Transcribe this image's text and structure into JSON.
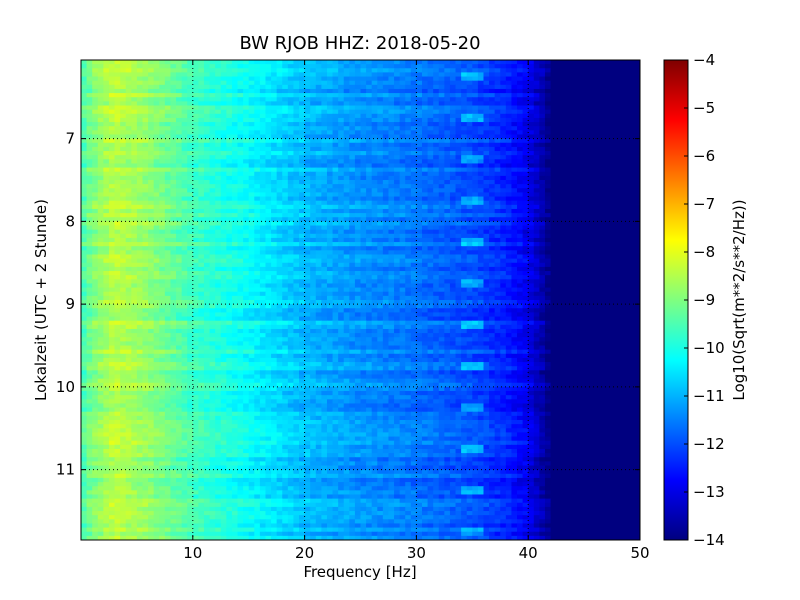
{
  "chart_data": {
    "type": "heatmap",
    "title": "BW RJOB HHZ: 2018-05-20",
    "xlabel": "Frequency [Hz]",
    "ylabel": "Lokalzeit (UTC + 2 Stunde)",
    "xlim": [
      0,
      50
    ],
    "ylim": [
      6.05,
      11.85
    ],
    "y_inverted": true,
    "x_ticks": [
      10,
      20,
      30,
      40,
      50
    ],
    "y_ticks": [
      7,
      8,
      9,
      10,
      11
    ],
    "grid": true,
    "colormap": "jet",
    "colorbar": {
      "label": "Log10(Sqrt(m**2/s**2/Hz))",
      "min": -14,
      "max": -4,
      "ticks": [
        -4,
        -5,
        -6,
        -7,
        -8,
        -9,
        -10,
        -11,
        -12,
        -13,
        -14
      ]
    },
    "level_profile": {
      "x": [
        0,
        1,
        3,
        6,
        10,
        15,
        20,
        25,
        30,
        35,
        38,
        40,
        41,
        42,
        50
      ],
      "values": [
        -9.6,
        -9.0,
        -8.4,
        -8.8,
        -9.6,
        -10.2,
        -10.9,
        -11.3,
        -11.6,
        -12.0,
        -12.4,
        -12.9,
        -13.4,
        -14.0,
        -14.0
      ]
    },
    "tone_band_hz": [
      34,
      36
    ]
  }
}
